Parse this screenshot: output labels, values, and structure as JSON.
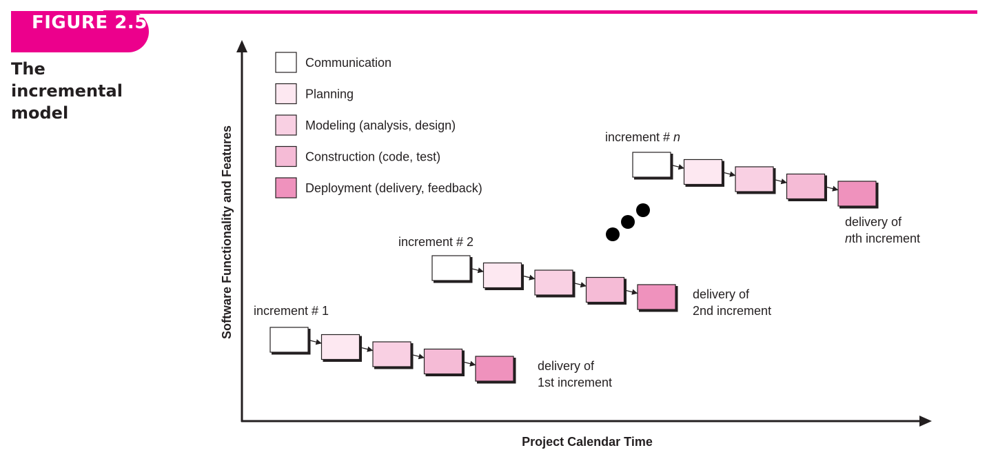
{
  "figure": {
    "label": "FIGURE 2.5",
    "title": "The incremental model",
    "accent_color": "#ec008c"
  },
  "axes": {
    "y_label": "Software Functionality and Features",
    "x_label": "Project Calendar Time"
  },
  "legend": [
    {
      "key": "communication",
      "label": "Communication",
      "color": "#ffffff"
    },
    {
      "key": "planning",
      "label": "Planning",
      "color": "#fde8f1"
    },
    {
      "key": "modeling",
      "label": "Modeling (analysis, design)",
      "color": "#f9d0e3"
    },
    {
      "key": "construction",
      "label": "Construction (code, test)",
      "color": "#f5bbd6"
    },
    {
      "key": "deployment",
      "label": "Deployment (delivery, feedback)",
      "color": "#ef92bd"
    }
  ],
  "increments": [
    {
      "title": "increment # 1",
      "delivery_line1": "delivery of",
      "delivery_line2": "1st increment"
    },
    {
      "title": "increment # 2",
      "delivery_line1": "delivery of",
      "delivery_line2": "2nd increment"
    },
    {
      "title_prefix": "increment # ",
      "title_var": "n",
      "delivery_line1": "delivery of",
      "delivery_line2_var": "n",
      "delivery_line2_rest": "th increment"
    }
  ]
}
